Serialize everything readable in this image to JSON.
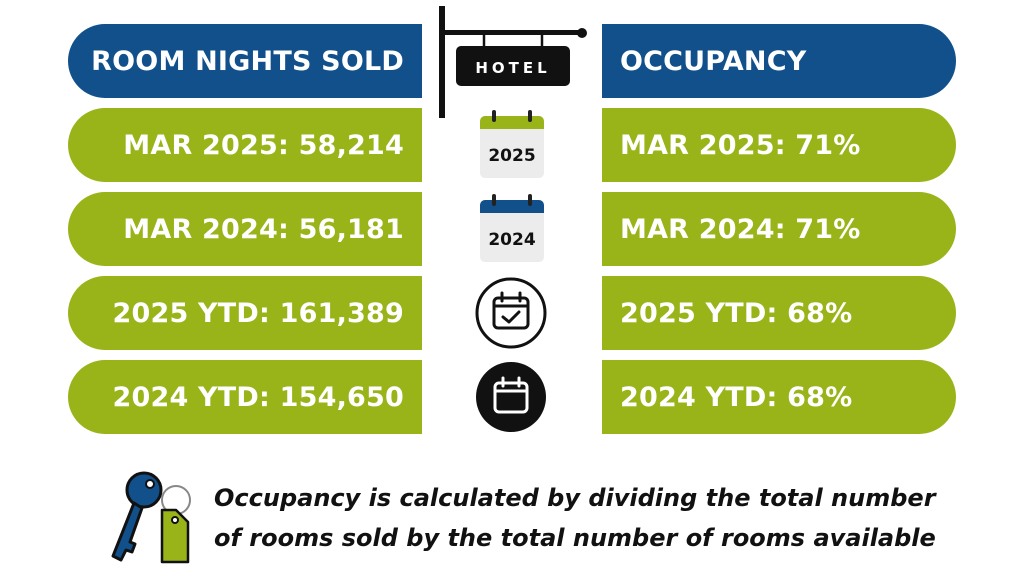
{
  "header": {
    "left_title": "ROOM NIGHTS SOLD",
    "right_title": "OCCUPANCY",
    "sign_text": "HOTEL"
  },
  "rows": [
    {
      "left": "MAR 2025: 58,214",
      "right": "MAR 2025: 71%",
      "icon_label": "2025"
    },
    {
      "left": "MAR 2024: 56,181",
      "right": "MAR 2024: 71%",
      "icon_label": "2024"
    },
    {
      "left": "2025 YTD: 161,389",
      "right": "2025 YTD: 68%"
    },
    {
      "left": "2024 YTD: 154,650",
      "right": "2024 YTD: 68%"
    }
  ],
  "footnote": {
    "line1": "Occupancy is calculated by dividing the total number",
    "line2": "of rooms sold by the total number of rooms available"
  },
  "icons": {
    "row0": "calendar-2025-icon",
    "row1": "calendar-2024-icon",
    "row2": "calendar-check-icon",
    "row3": "calendar-filled-icon",
    "footer": "room-key-icon"
  },
  "colors": {
    "blue": "#11508b",
    "green": "#99b419",
    "text": "#111111"
  }
}
